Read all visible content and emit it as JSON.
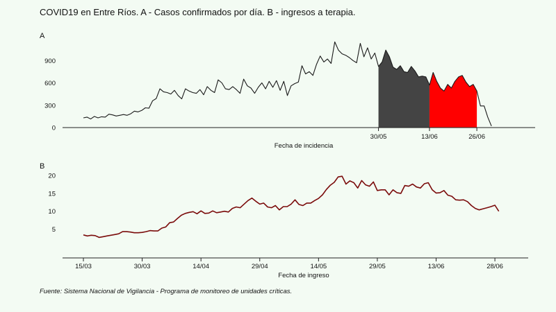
{
  "title": "COVID19 en Entre Ríos. A - Casos confirmados por día. B - ingresos a terapia.",
  "caption": "Fuente: Sistema Nacional de Vigilancia - Programa de monitoreo de unidades críticas.",
  "colors": {
    "background": "#f3fbf3",
    "line_a": "#1a1a1a",
    "fill_gray": "#444444",
    "fill_red": "#ff0000",
    "line_b": "#7a0a0a",
    "axis": "#222222"
  },
  "chart_data": [
    {
      "panel": "A",
      "type": "area",
      "title": "A",
      "xlabel": "Fecha de incidencia",
      "ylabel": "",
      "ylim": [
        0,
        1200
      ],
      "yticks": [
        0,
        300,
        600,
        900
      ],
      "xlim": [
        0,
        120
      ],
      "xticks": [
        {
          "x": 81,
          "label": "30/05"
        },
        {
          "x": 95,
          "label": "13/06"
        },
        {
          "x": 108,
          "label": "26/06"
        }
      ],
      "grid": false,
      "legend": "none",
      "series": [
        {
          "x": [
            0,
            1,
            2,
            3,
            4,
            5,
            6,
            7,
            8,
            9,
            10,
            11,
            12,
            13,
            14,
            15,
            16,
            17,
            18,
            19,
            20,
            21,
            22,
            23,
            24,
            25,
            26,
            27,
            28,
            29,
            30,
            31,
            32,
            33,
            34,
            35,
            36,
            37,
            38,
            39,
            40,
            41,
            42,
            43,
            44,
            45,
            46,
            47,
            48,
            49,
            50,
            51,
            52,
            53,
            54,
            55,
            56,
            57,
            58,
            59,
            60,
            61,
            62,
            63,
            64,
            65,
            66,
            67,
            68,
            69,
            70,
            71,
            72,
            73,
            74,
            75,
            76,
            77,
            78,
            79,
            80,
            81,
            82,
            83,
            84,
            85,
            86,
            87,
            88,
            89,
            90,
            91,
            92,
            93,
            94,
            95,
            96,
            97,
            98,
            99,
            100,
            101,
            102,
            103,
            104,
            105,
            106,
            107,
            108,
            109,
            110,
            111,
            112
          ],
          "values": [
            130,
            140,
            115,
            150,
            130,
            145,
            140,
            180,
            170,
            155,
            165,
            175,
            165,
            185,
            220,
            210,
            230,
            265,
            260,
            360,
            390,
            520,
            480,
            470,
            450,
            500,
            430,
            385,
            520,
            490,
            470,
            460,
            510,
            440,
            550,
            500,
            470,
            640,
            600,
            520,
            510,
            550,
            510,
            460,
            650,
            560,
            530,
            460,
            540,
            600,
            520,
            620,
            540,
            630,
            500,
            620,
            430,
            560,
            590,
            610,
            830,
            720,
            750,
            700,
            850,
            960,
            880,
            920,
            860,
            1150,
            1040,
            990,
            970,
            940,
            900,
            870,
            1130,
            950,
            1070,
            920,
            1000,
            820,
            880,
            1040,
            950,
            810,
            780,
            830,
            750,
            740,
            820,
            760,
            680,
            690,
            680,
            570,
            740,
            620,
            530,
            490,
            580,
            530,
            620,
            680,
            700,
            610,
            550,
            580,
            490,
            290,
            290,
            140,
            20
          ]
        }
      ],
      "highlights": [
        {
          "color": "gray",
          "x_start": 81,
          "x_end": 95
        },
        {
          "color": "red",
          "x_start": 95,
          "x_end": 108
        }
      ]
    },
    {
      "panel": "B",
      "type": "line",
      "title": "B",
      "xlabel": "Fecha de ingreso",
      "ylabel": "",
      "ylim": [
        2,
        21
      ],
      "yticks": [
        5,
        10,
        15,
        20
      ],
      "xlim": [
        0,
        108
      ],
      "xticks": [
        {
          "x": 0,
          "label": "15/03"
        },
        {
          "x": 15,
          "label": "30/03"
        },
        {
          "x": 30,
          "label": "14/04"
        },
        {
          "x": 45,
          "label": "29/04"
        },
        {
          "x": 60,
          "label": "14/05"
        },
        {
          "x": 75,
          "label": "29/05"
        },
        {
          "x": 90,
          "label": "13/06"
        },
        {
          "x": 105,
          "label": "28/06"
        }
      ],
      "grid": false,
      "legend": "none",
      "series": [
        {
          "x": [
            0,
            1,
            2,
            3,
            4,
            5,
            6,
            7,
            8,
            9,
            10,
            11,
            12,
            13,
            14,
            15,
            16,
            17,
            18,
            19,
            20,
            21,
            22,
            23,
            24,
            25,
            26,
            27,
            28,
            29,
            30,
            31,
            32,
            33,
            34,
            35,
            36,
            37,
            38,
            39,
            40,
            41,
            42,
            43,
            44,
            45,
            46,
            47,
            48,
            49,
            50,
            51,
            52,
            53,
            54,
            55,
            56,
            57,
            58,
            59,
            60,
            61,
            62,
            63,
            64,
            65,
            66,
            67,
            68,
            69,
            70,
            71,
            72,
            73,
            74,
            75,
            76,
            77,
            78,
            79,
            80,
            81,
            82,
            83,
            84,
            85,
            86,
            87,
            88,
            89,
            90,
            91,
            92,
            93,
            94,
            95,
            96,
            97,
            98,
            99,
            100,
            101,
            102,
            103,
            104,
            105,
            106
          ],
          "values": [
            3.4,
            3.1,
            3.3,
            3.2,
            2.7,
            2.9,
            3.1,
            3.3,
            3.5,
            3.7,
            4.3,
            4.3,
            4.2,
            4.0,
            4.0,
            4.1,
            4.3,
            4.6,
            4.5,
            4.5,
            5.3,
            5.6,
            6.8,
            7.0,
            8.0,
            8.9,
            9.4,
            9.7,
            9.9,
            9.3,
            10.1,
            9.4,
            9.5,
            10.1,
            9.6,
            9.8,
            10.0,
            9.8,
            10.8,
            11.2,
            11.0,
            12.0,
            13.0,
            13.7,
            12.8,
            12.0,
            12.3,
            11.2,
            11.0,
            11.6,
            10.4,
            11.3,
            11.3,
            12.0,
            13.2,
            11.9,
            11.6,
            12.3,
            12.3,
            13.0,
            13.6,
            14.6,
            16.1,
            17.3,
            18.1,
            19.6,
            19.8,
            17.6,
            18.5,
            18.0,
            16.5,
            18.6,
            17.4,
            17.0,
            18.2,
            15.8,
            16.0,
            16.0,
            14.6,
            16.0,
            15.2,
            15.0,
            17.2,
            17.0,
            17.6,
            16.8,
            16.5,
            17.7,
            18.0,
            16.0,
            15.1,
            15.2,
            15.8,
            14.5,
            14.2,
            13.2,
            13.1,
            13.2,
            12.7,
            11.6,
            10.8,
            10.4,
            10.7,
            11.0,
            11.3,
            11.7,
            10.0
          ]
        }
      ]
    }
  ]
}
